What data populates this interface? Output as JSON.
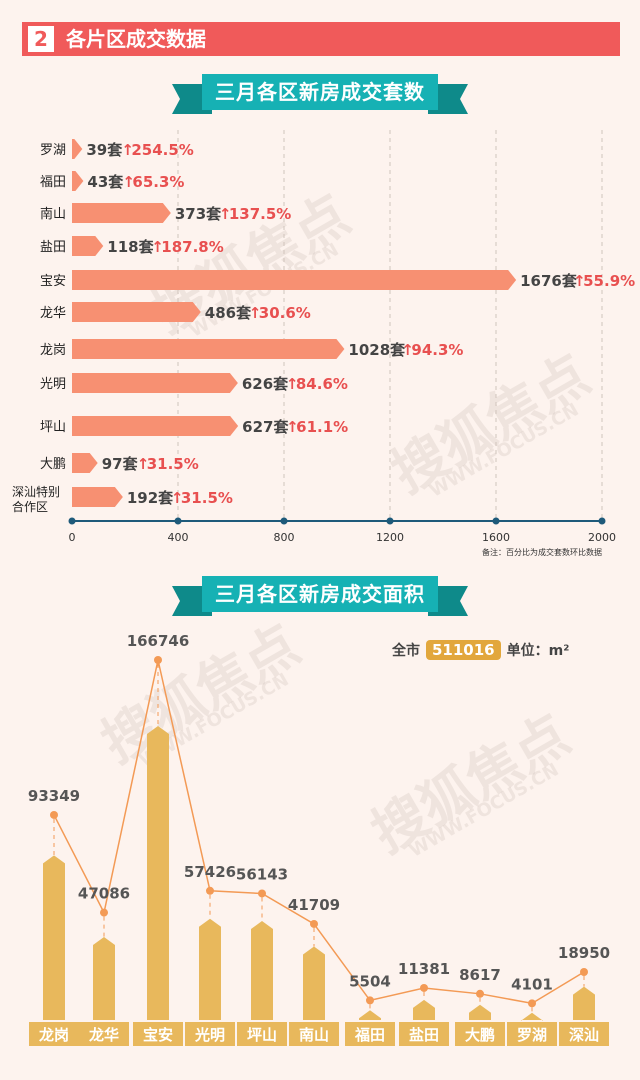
{
  "section": {
    "number": "2",
    "title": "各片区成交数据"
  },
  "chart1_title": "三月各区新房成交套数",
  "chart2_title": "三月各区新房成交面积",
  "watermark": {
    "line1": "搜狐焦点",
    "line2": "WWW.FOCUS.CN"
  },
  "colors": {
    "bar": "#f79072",
    "pct": "#e85050",
    "area": "#e8b85c",
    "line": "#f39a55",
    "axis": "#1e5a7a"
  },
  "chart_data": [
    {
      "type": "bar",
      "orientation": "horizontal",
      "title": "三月各区新房成交套数",
      "categories": [
        "罗湖",
        "福田",
        "南山",
        "盐田",
        "宝安",
        "龙华",
        "龙岗",
        "光明",
        "坪山",
        "大鹏",
        "深汕特别合作区"
      ],
      "values": [
        39,
        43,
        373,
        118,
        1676,
        486,
        1028,
        626,
        627,
        97,
        192
      ],
      "value_labels": [
        "39套",
        "43套",
        "373套",
        "118套",
        "1676套",
        "486套",
        "1028套",
        "626套",
        "627套",
        "97套",
        "192套"
      ],
      "change_labels": [
        "254.5%",
        "65.3%",
        "137.5%",
        "187.8%",
        "55.9%",
        "30.6%",
        "94.3%",
        "84.6%",
        "61.1%",
        "31.5%",
        "31.5%"
      ],
      "xticks": [
        "0",
        "400",
        "800",
        "1200",
        "1600",
        "2000"
      ],
      "xlim": [
        0,
        2000
      ],
      "note": "备注：百分比为成交套数环比数据",
      "grid": true
    },
    {
      "type": "bar",
      "title": "三月各区新房成交面积",
      "categories": [
        "龙岗",
        "龙华",
        "宝安",
        "光明",
        "坪山",
        "南山",
        "福田",
        "盐田",
        "大鹏",
        "罗湖",
        "深汕"
      ],
      "values": [
        93349,
        47086,
        166746,
        57426,
        56143,
        41709,
        5504,
        11381,
        8617,
        4101,
        18950
      ],
      "total_label": "全市",
      "total": "511016",
      "unit": "单位：m²"
    }
  ]
}
